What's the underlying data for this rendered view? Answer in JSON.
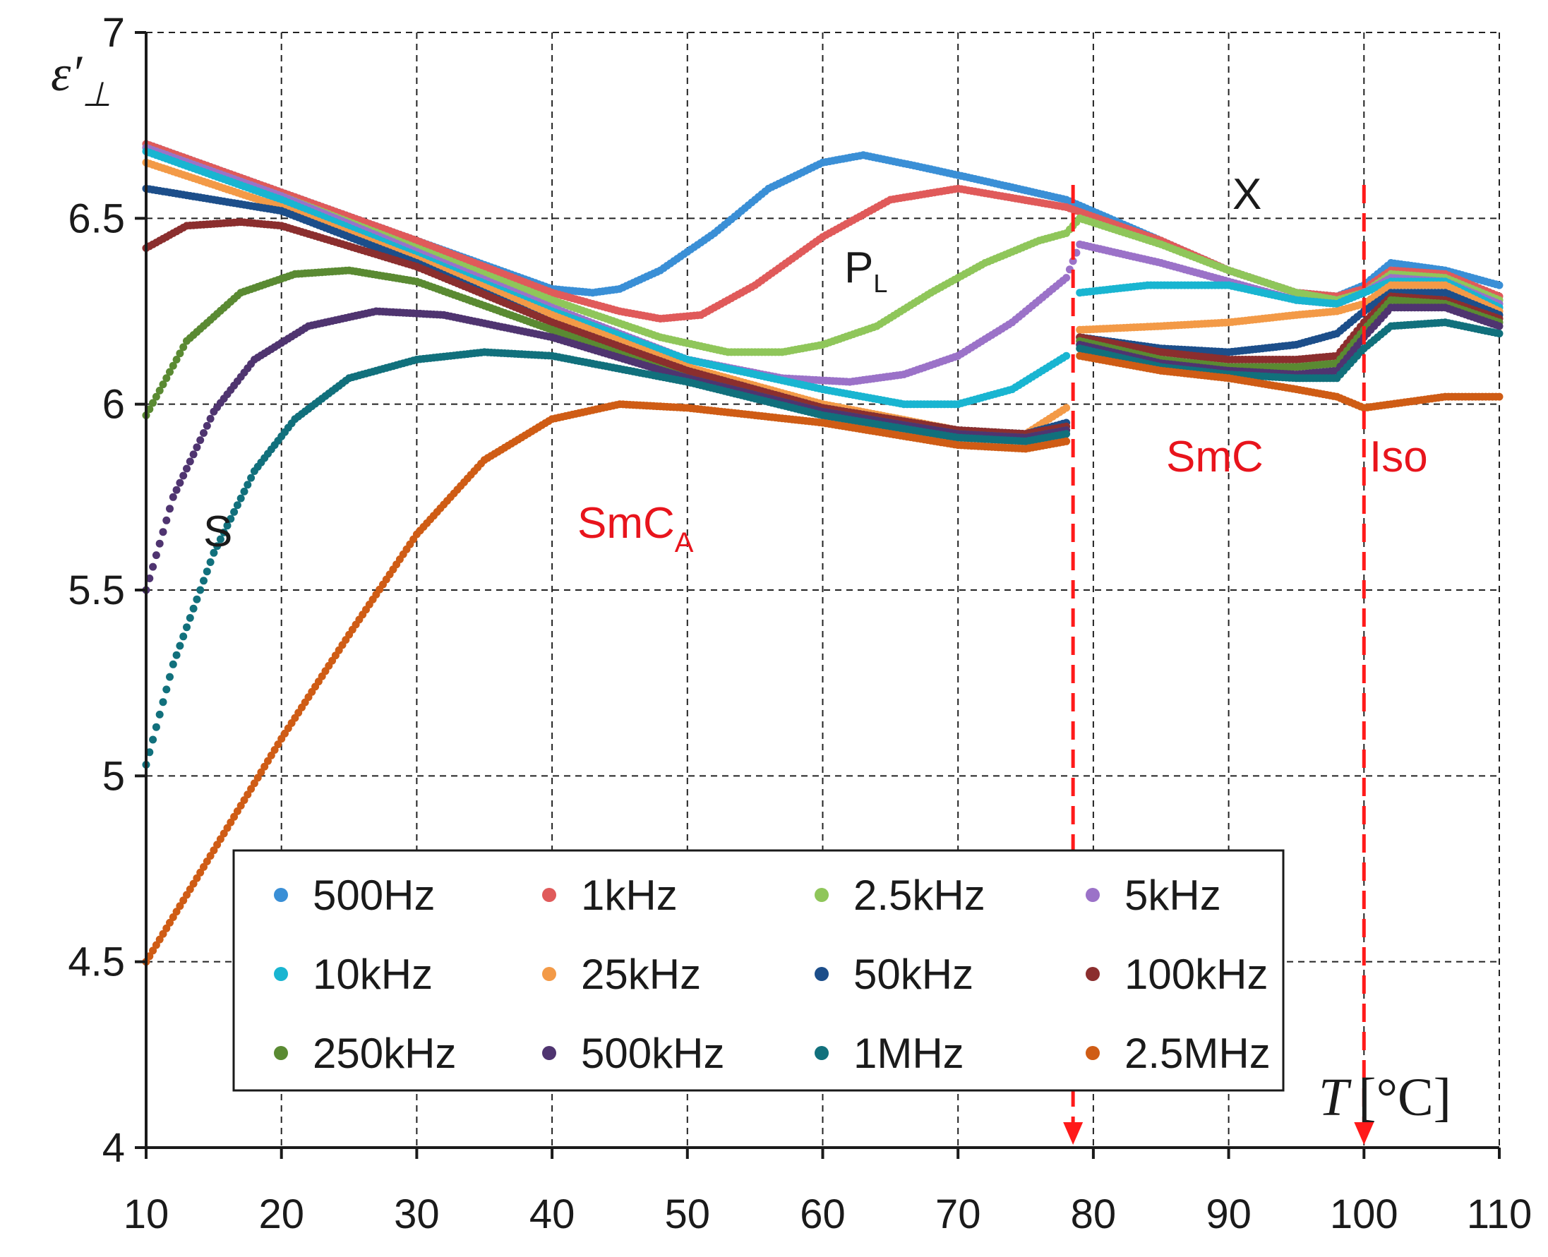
{
  "chart_data": {
    "type": "scatter",
    "title": "",
    "xlabel_var": "T",
    "xlabel_unit": "[°C]",
    "ylabel_main": "ε′",
    "ylabel_sub": "⊥",
    "xlim": [
      10,
      110
    ],
    "ylim": [
      4,
      7
    ],
    "xticks": [
      "10",
      "20",
      "30",
      "40",
      "50",
      "60",
      "70",
      "80",
      "90",
      "100",
      "110"
    ],
    "yticks": [
      "4",
      "4.5",
      "5",
      "5.5",
      "6",
      "6.5",
      "7"
    ],
    "grid": true,
    "legend_placement": "bottom-center",
    "transitions": [
      78.5,
      100
    ],
    "annotations": {
      "phase_smca": "SmC",
      "phase_smca_sub": "A",
      "phase_smc": "SmC",
      "phase_iso": "Iso",
      "mode_s": "S",
      "mode_pl": "P",
      "mode_pl_sub": "L",
      "mode_x": "X"
    },
    "series": [
      {
        "name": "500Hz",
        "color": "#3a8fd6",
        "points": [
          [
            10,
            6.7
          ],
          [
            20,
            6.57
          ],
          [
            30,
            6.44
          ],
          [
            40,
            6.31
          ],
          [
            43,
            6.3
          ],
          [
            45,
            6.31
          ],
          [
            48,
            6.36
          ],
          [
            52,
            6.46
          ],
          [
            56,
            6.58
          ],
          [
            60,
            6.65
          ],
          [
            63,
            6.67
          ],
          [
            67,
            6.64
          ],
          [
            72,
            6.6
          ],
          [
            78,
            6.55
          ],
          [
            85,
            6.44
          ],
          [
            90,
            6.36
          ],
          [
            95,
            6.3
          ],
          [
            98,
            6.29
          ],
          [
            100,
            6.32
          ],
          [
            102,
            6.38
          ],
          [
            106,
            6.36
          ],
          [
            110,
            6.32
          ]
        ]
      },
      {
        "name": "1kHz",
        "color": "#e05a5a",
        "points": [
          [
            10,
            6.7
          ],
          [
            20,
            6.57
          ],
          [
            30,
            6.44
          ],
          [
            40,
            6.3
          ],
          [
            45,
            6.25
          ],
          [
            48,
            6.23
          ],
          [
            51,
            6.24
          ],
          [
            55,
            6.32
          ],
          [
            60,
            6.45
          ],
          [
            65,
            6.55
          ],
          [
            70,
            6.58
          ],
          [
            78,
            6.53
          ],
          [
            85,
            6.44
          ],
          [
            90,
            6.36
          ],
          [
            95,
            6.3
          ],
          [
            98,
            6.29
          ],
          [
            100,
            6.31
          ],
          [
            102,
            6.36
          ],
          [
            106,
            6.35
          ],
          [
            110,
            6.29
          ]
        ]
      },
      {
        "name": "2.5kHz",
        "color": "#8fc65a",
        "points": [
          [
            10,
            6.69
          ],
          [
            20,
            6.56
          ],
          [
            30,
            6.42
          ],
          [
            40,
            6.28
          ],
          [
            48,
            6.18
          ],
          [
            53,
            6.14
          ],
          [
            57,
            6.14
          ],
          [
            60,
            6.16
          ],
          [
            64,
            6.21
          ],
          [
            68,
            6.3
          ],
          [
            72,
            6.38
          ],
          [
            76,
            6.44
          ],
          [
            78,
            6.46
          ],
          [
            79,
            6.5
          ],
          [
            85,
            6.43
          ],
          [
            90,
            6.36
          ],
          [
            95,
            6.3
          ],
          [
            98,
            6.28
          ],
          [
            100,
            6.3
          ],
          [
            102,
            6.35
          ],
          [
            106,
            6.34
          ],
          [
            110,
            6.28
          ]
        ]
      },
      {
        "name": "5kHz",
        "color": "#9b72c8",
        "points": [
          [
            10,
            6.69
          ],
          [
            20,
            6.56
          ],
          [
            30,
            6.41
          ],
          [
            40,
            6.26
          ],
          [
            50,
            6.12
          ],
          [
            57,
            6.07
          ],
          [
            62,
            6.06
          ],
          [
            66,
            6.08
          ],
          [
            70,
            6.13
          ],
          [
            74,
            6.22
          ],
          [
            78,
            6.34
          ],
          [
            79,
            6.43
          ],
          [
            85,
            6.38
          ],
          [
            90,
            6.33
          ],
          [
            95,
            6.28
          ],
          [
            98,
            6.27
          ],
          [
            100,
            6.3
          ],
          [
            102,
            6.34
          ],
          [
            106,
            6.33
          ],
          [
            110,
            6.27
          ]
        ]
      },
      {
        "name": "10kHz",
        "color": "#19b5d1",
        "points": [
          [
            10,
            6.68
          ],
          [
            20,
            6.55
          ],
          [
            30,
            6.4
          ],
          [
            40,
            6.25
          ],
          [
            50,
            6.12
          ],
          [
            60,
            6.04
          ],
          [
            66,
            6.0
          ],
          [
            70,
            6.0
          ],
          [
            74,
            6.04
          ],
          [
            78,
            6.13
          ],
          [
            79,
            6.3
          ],
          [
            84,
            6.32
          ],
          [
            90,
            6.32
          ],
          [
            95,
            6.28
          ],
          [
            98,
            6.27
          ],
          [
            100,
            6.3
          ],
          [
            102,
            6.33
          ],
          [
            106,
            6.33
          ],
          [
            110,
            6.26
          ]
        ]
      },
      {
        "name": "25kHz",
        "color": "#f39a47",
        "points": [
          [
            10,
            6.65
          ],
          [
            20,
            6.53
          ],
          [
            30,
            6.39
          ],
          [
            40,
            6.24
          ],
          [
            50,
            6.1
          ],
          [
            60,
            6.0
          ],
          [
            70,
            5.93
          ],
          [
            75,
            5.92
          ],
          [
            78,
            5.99
          ],
          [
            79,
            6.2
          ],
          [
            85,
            6.21
          ],
          [
            90,
            6.22
          ],
          [
            95,
            6.24
          ],
          [
            98,
            6.25
          ],
          [
            100,
            6.27
          ],
          [
            102,
            6.32
          ],
          [
            106,
            6.32
          ],
          [
            110,
            6.25
          ]
        ]
      },
      {
        "name": "50kHz",
        "color": "#1c4e8a",
        "points": [
          [
            10,
            6.58
          ],
          [
            20,
            6.52
          ],
          [
            30,
            6.38
          ],
          [
            40,
            6.22
          ],
          [
            50,
            6.09
          ],
          [
            60,
            5.99
          ],
          [
            70,
            5.93
          ],
          [
            75,
            5.92
          ],
          [
            78,
            5.95
          ],
          [
            79,
            6.18
          ],
          [
            85,
            6.15
          ],
          [
            90,
            6.14
          ],
          [
            95,
            6.16
          ],
          [
            98,
            6.19
          ],
          [
            100,
            6.25
          ],
          [
            102,
            6.3
          ],
          [
            106,
            6.3
          ],
          [
            110,
            6.24
          ]
        ]
      },
      {
        "name": "100kHz",
        "color": "#8b2e2e",
        "points": [
          [
            10,
            6.42
          ],
          [
            13,
            6.48
          ],
          [
            17,
            6.49
          ],
          [
            20,
            6.48
          ],
          [
            30,
            6.37
          ],
          [
            40,
            6.22
          ],
          [
            50,
            6.09
          ],
          [
            60,
            5.99
          ],
          [
            70,
            5.93
          ],
          [
            75,
            5.92
          ],
          [
            78,
            5.94
          ],
          [
            79,
            6.18
          ],
          [
            85,
            6.14
          ],
          [
            90,
            6.12
          ],
          [
            95,
            6.12
          ],
          [
            98,
            6.13
          ],
          [
            100,
            6.22
          ],
          [
            102,
            6.29
          ],
          [
            106,
            6.28
          ],
          [
            110,
            6.23
          ]
        ]
      },
      {
        "name": "250kHz",
        "color": "#5a8a32",
        "points": [
          [
            10,
            5.97
          ],
          [
            13,
            6.17
          ],
          [
            17,
            6.3
          ],
          [
            21,
            6.35
          ],
          [
            25,
            6.36
          ],
          [
            30,
            6.33
          ],
          [
            40,
            6.2
          ],
          [
            50,
            6.07
          ],
          [
            60,
            5.98
          ],
          [
            70,
            5.92
          ],
          [
            75,
            5.91
          ],
          [
            78,
            5.93
          ],
          [
            79,
            6.17
          ],
          [
            85,
            6.12
          ],
          [
            90,
            6.1
          ],
          [
            95,
            6.1
          ],
          [
            98,
            6.11
          ],
          [
            100,
            6.2
          ],
          [
            102,
            6.28
          ],
          [
            106,
            6.27
          ],
          [
            110,
            6.22
          ]
        ]
      },
      {
        "name": "500kHz",
        "color": "#4f3470",
        "points": [
          [
            10,
            5.5
          ],
          [
            12,
            5.75
          ],
          [
            15,
            5.98
          ],
          [
            18,
            6.12
          ],
          [
            22,
            6.21
          ],
          [
            27,
            6.25
          ],
          [
            32,
            6.24
          ],
          [
            40,
            6.18
          ],
          [
            50,
            6.07
          ],
          [
            60,
            5.98
          ],
          [
            70,
            5.92
          ],
          [
            75,
            5.91
          ],
          [
            78,
            5.93
          ],
          [
            79,
            6.16
          ],
          [
            85,
            6.11
          ],
          [
            90,
            6.09
          ],
          [
            95,
            6.08
          ],
          [
            98,
            6.09
          ],
          [
            100,
            6.18
          ],
          [
            102,
            6.26
          ],
          [
            106,
            6.26
          ],
          [
            110,
            6.21
          ]
        ]
      },
      {
        "name": "1MHz",
        "color": "#11707c",
        "points": [
          [
            10,
            5.03
          ],
          [
            12,
            5.3
          ],
          [
            15,
            5.6
          ],
          [
            18,
            5.82
          ],
          [
            21,
            5.96
          ],
          [
            25,
            6.07
          ],
          [
            30,
            6.12
          ],
          [
            35,
            6.14
          ],
          [
            40,
            6.13
          ],
          [
            50,
            6.06
          ],
          [
            60,
            5.97
          ],
          [
            70,
            5.91
          ],
          [
            75,
            5.9
          ],
          [
            78,
            5.92
          ],
          [
            79,
            6.15
          ],
          [
            85,
            6.1
          ],
          [
            90,
            6.08
          ],
          [
            95,
            6.07
          ],
          [
            98,
            6.07
          ],
          [
            100,
            6.15
          ],
          [
            102,
            6.21
          ],
          [
            106,
            6.22
          ],
          [
            110,
            6.19
          ]
        ]
      },
      {
        "name": "2.5MHz",
        "color": "#cf5c15",
        "points": [
          [
            10,
            4.5
          ],
          [
            15,
            4.8
          ],
          [
            20,
            5.1
          ],
          [
            25,
            5.38
          ],
          [
            30,
            5.65
          ],
          [
            35,
            5.85
          ],
          [
            40,
            5.96
          ],
          [
            45,
            6.0
          ],
          [
            50,
            5.99
          ],
          [
            60,
            5.95
          ],
          [
            70,
            5.89
          ],
          [
            75,
            5.88
          ],
          [
            78,
            5.9
          ],
          [
            79,
            6.13
          ],
          [
            85,
            6.09
          ],
          [
            90,
            6.07
          ],
          [
            95,
            6.04
          ],
          [
            98,
            6.02
          ],
          [
            100,
            5.99
          ],
          [
            102,
            6.0
          ],
          [
            106,
            6.02
          ],
          [
            110,
            6.02
          ]
        ]
      }
    ]
  }
}
